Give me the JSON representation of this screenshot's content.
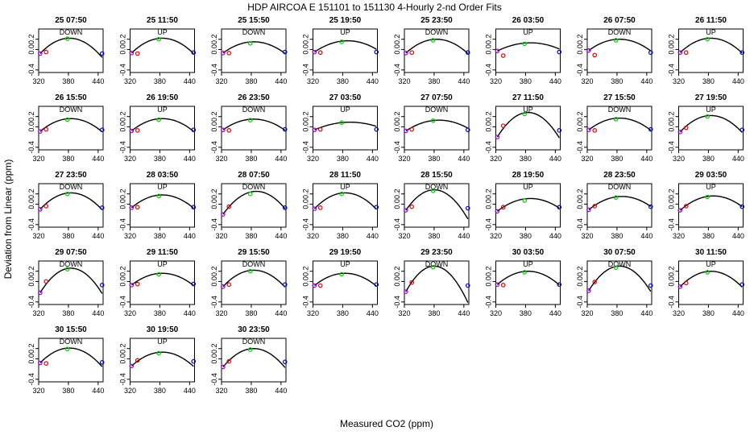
{
  "figure": {
    "title": "HDP    AIRCOA E    151101 to 151130    4-Hourly 2-nd Order Fits",
    "xlabel": "Measured CO2 (ppm)",
    "ylabel": "Deviation from Linear (ppm)"
  },
  "chart_data": {
    "type": "scatter",
    "xlim": [
      320,
      450
    ],
    "ylim": [
      -0.45,
      0.4
    ],
    "xticks": [
      "320",
      "380",
      "440"
    ],
    "yticks": [
      "-0.4",
      "0.0",
      "0.2"
    ],
    "grid": false,
    "point_colors": {
      "s1": "#9900cc",
      "s2": "#dd0000",
      "s3": "#00cc00",
      "s4": "#0000cc"
    },
    "curve_color": "#000000",
    "x_points": [
      323,
      335,
      378,
      448
    ],
    "panels": [
      {
        "title": "25 07:50",
        "label": "DOWN",
        "a": 0.22,
        "xv": 382,
        "p": [
          -0.08,
          -0.05,
          0.21,
          -0.08
        ]
      },
      {
        "title": "25 11:50",
        "label": "UP",
        "a": 0.22,
        "xv": 385,
        "p": [
          -0.07,
          -0.08,
          0.2,
          -0.06
        ]
      },
      {
        "title": "25 15:50",
        "label": "DOWN",
        "a": 0.15,
        "xv": 385,
        "p": [
          -0.07,
          -0.07,
          0.12,
          -0.05
        ]
      },
      {
        "title": "25 19:50",
        "label": "UP",
        "a": 0.17,
        "xv": 390,
        "p": [
          -0.05,
          -0.06,
          0.15,
          -0.05
        ]
      },
      {
        "title": "25 23:50",
        "label": "DOWN",
        "a": 0.2,
        "xv": 385,
        "p": [
          -0.07,
          -0.06,
          0.18,
          -0.06
        ]
      },
      {
        "title": "26 03:50",
        "label": "UP",
        "a": 0.13,
        "xv": 390,
        "p": [
          -0.03,
          -0.12,
          0.11,
          -0.05
        ]
      },
      {
        "title": "26 07:50",
        "label": "DOWN",
        "a": 0.2,
        "xv": 385,
        "p": [
          -0.02,
          -0.11,
          0.18,
          -0.06
        ]
      },
      {
        "title": "26 11:50",
        "label": "UP",
        "a": 0.22,
        "xv": 385,
        "p": [
          -0.06,
          -0.06,
          0.2,
          -0.06
        ]
      },
      {
        "title": "26 15:50",
        "label": "DOWN",
        "a": 0.16,
        "xv": 385,
        "p": [
          -0.09,
          -0.05,
          0.14,
          -0.06
        ]
      },
      {
        "title": "26 19:50",
        "label": "UP",
        "a": 0.16,
        "xv": 385,
        "p": [
          -0.08,
          -0.07,
          0.14,
          -0.06
        ]
      },
      {
        "title": "26 23:50",
        "label": "DOWN",
        "a": 0.15,
        "xv": 385,
        "p": [
          -0.06,
          -0.07,
          0.13,
          -0.05
        ]
      },
      {
        "title": "27 03:50",
        "label": "UP",
        "a": 0.09,
        "xv": 395,
        "p": [
          -0.06,
          -0.05,
          0.08,
          -0.05
        ]
      },
      {
        "title": "27 07:50",
        "label": "DOWN",
        "a": 0.13,
        "xv": 390,
        "p": [
          -0.08,
          -0.05,
          0.12,
          -0.06
        ]
      },
      {
        "title": "27 11:50",
        "label": "UP",
        "a": 0.28,
        "xv": 385,
        "p": [
          -0.2,
          0.02,
          0.25,
          -0.07
        ]
      },
      {
        "title": "27 15:50",
        "label": "DOWN",
        "a": 0.17,
        "xv": 385,
        "p": [
          -0.06,
          -0.07,
          0.15,
          -0.05
        ]
      },
      {
        "title": "27 19:50",
        "label": "UP",
        "a": 0.22,
        "xv": 385,
        "p": [
          -0.1,
          -0.02,
          0.2,
          -0.06
        ]
      },
      {
        "title": "27 23:50",
        "label": "DOWN",
        "a": 0.22,
        "xv": 385,
        "p": [
          -0.1,
          -0.04,
          0.2,
          -0.07
        ]
      },
      {
        "title": "28 03:50",
        "label": "UP",
        "a": 0.18,
        "xv": 385,
        "p": [
          -0.07,
          -0.06,
          0.16,
          -0.06
        ]
      },
      {
        "title": "28 07:50",
        "label": "DOWN",
        "a": 0.25,
        "xv": 390,
        "p": [
          -0.2,
          -0.05,
          0.2,
          -0.07
        ]
      },
      {
        "title": "28 11:50",
        "label": "UP",
        "a": 0.22,
        "xv": 385,
        "p": [
          -0.09,
          -0.07,
          0.2,
          -0.06
        ]
      },
      {
        "title": "28 15:50",
        "label": "DOWN",
        "a": 0.28,
        "xv": 380,
        "p": [
          -0.12,
          -0.05,
          0.26,
          -0.08
        ]
      },
      {
        "title": "28 19:50",
        "label": "UP",
        "a": 0.11,
        "xv": 390,
        "p": [
          -0.14,
          -0.06,
          0.07,
          -0.06
        ]
      },
      {
        "title": "28 23:50",
        "label": "DOWN",
        "a": 0.15,
        "xv": 390,
        "p": [
          -0.11,
          -0.04,
          0.13,
          -0.05
        ]
      },
      {
        "title": "29 03:50",
        "label": "UP",
        "a": 0.16,
        "xv": 390,
        "p": [
          -0.12,
          -0.04,
          0.14,
          -0.05
        ]
      },
      {
        "title": "29 07:50",
        "label": "DOWN",
        "a": 0.26,
        "xv": 385,
        "p": [
          -0.22,
          0.0,
          0.24,
          -0.07
        ]
      },
      {
        "title": "29 11:50",
        "label": "UP",
        "a": 0.16,
        "xv": 385,
        "p": [
          -0.07,
          -0.05,
          0.14,
          -0.05
        ]
      },
      {
        "title": "29 15:50",
        "label": "DOWN",
        "a": 0.22,
        "xv": 385,
        "p": [
          -0.1,
          -0.06,
          0.2,
          -0.06
        ]
      },
      {
        "title": "29 19:50",
        "label": "UP",
        "a": 0.16,
        "xv": 385,
        "p": [
          -0.08,
          -0.08,
          0.14,
          -0.06
        ]
      },
      {
        "title": "29 23:50",
        "label": "DOWN",
        "a": 0.3,
        "xv": 380,
        "p": [
          -0.2,
          -0.02,
          0.28,
          -0.08
        ]
      },
      {
        "title": "30 03:50",
        "label": "UP",
        "a": 0.2,
        "xv": 385,
        "p": [
          -0.06,
          -0.07,
          0.18,
          -0.06
        ]
      },
      {
        "title": "30 07:50",
        "label": "DOWN",
        "a": 0.3,
        "xv": 385,
        "p": [
          -0.18,
          -0.01,
          0.27,
          -0.08
        ]
      },
      {
        "title": "30 11:50",
        "label": "UP",
        "a": 0.2,
        "xv": 385,
        "p": [
          -0.1,
          -0.03,
          0.18,
          -0.06
        ]
      },
      {
        "title": "30 15:50",
        "label": "DOWN",
        "a": 0.21,
        "xv": 382,
        "p": [
          -0.08,
          -0.09,
          0.19,
          -0.07
        ]
      },
      {
        "title": "30 19:50",
        "label": "UP",
        "a": 0.13,
        "xv": 385,
        "p": [
          -0.14,
          -0.03,
          0.11,
          -0.05
        ]
      },
      {
        "title": "30 23:50",
        "label": "DOWN",
        "a": 0.2,
        "xv": 385,
        "p": [
          -0.16,
          -0.05,
          0.18,
          -0.06
        ]
      }
    ]
  }
}
